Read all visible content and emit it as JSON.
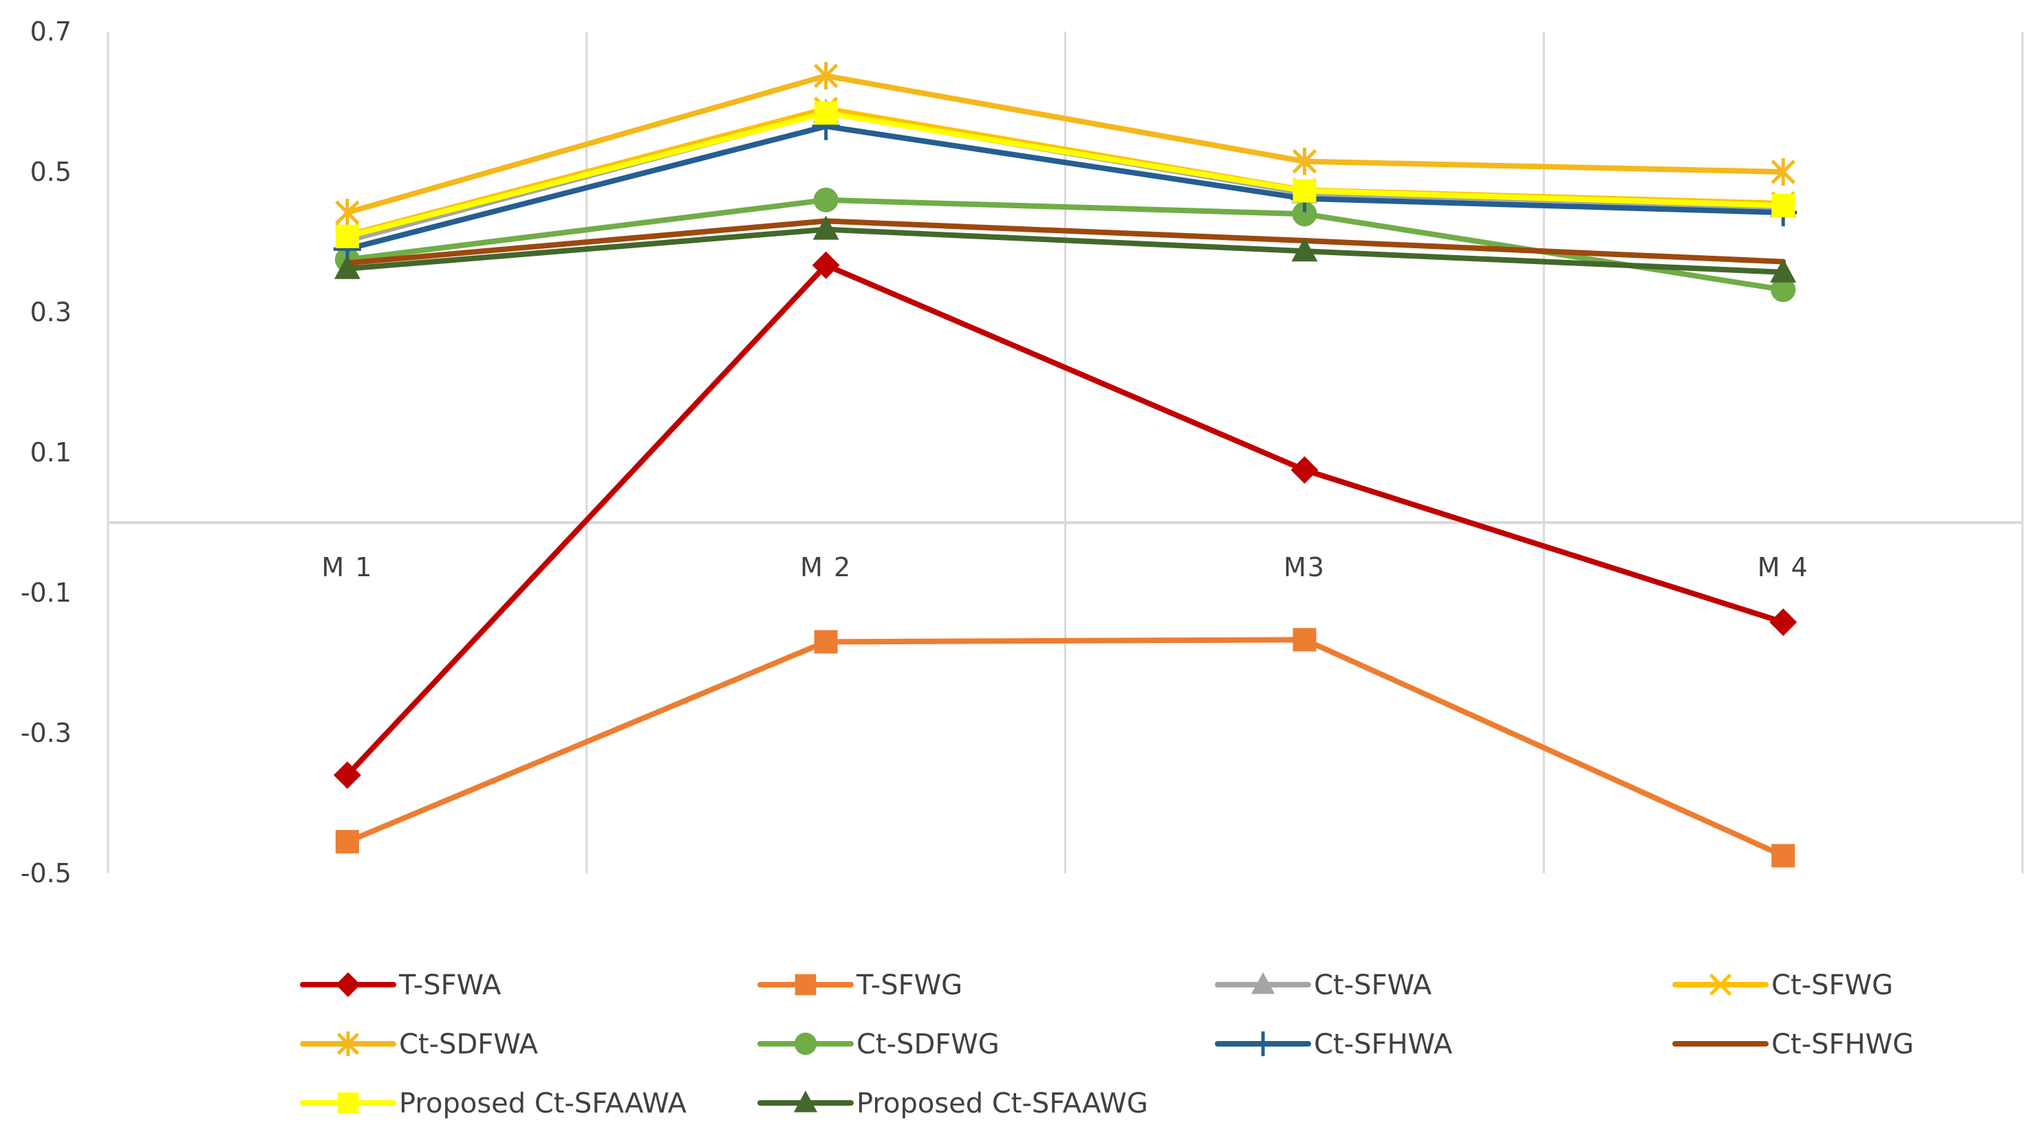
{
  "chart_data": {
    "type": "line",
    "categories": [
      "M 1",
      "M 2",
      "M3",
      "M 4"
    ],
    "y_ticks": [
      "0.7",
      "0.5",
      "0.3",
      "0.1",
      "-0.1",
      "-0.3",
      "-0.5"
    ],
    "ylim": [
      -0.5,
      0.7
    ],
    "grid": true,
    "legend_position": "bottom",
    "series": [
      {
        "name": "T-SFWA",
        "values": [
          -0.36,
          0.367,
          0.075,
          -0.142
        ],
        "color": "#C00000",
        "marker": "diamond"
      },
      {
        "name": "T-SFWG",
        "values": [
          -0.455,
          -0.17,
          -0.167,
          -0.475
        ],
        "color": "#ED7D31",
        "marker": "square"
      },
      {
        "name": "Ct-SFWA",
        "values": [
          0.402,
          0.585,
          0.47,
          0.45
        ],
        "color": "#A5A5A5",
        "marker": "triangle"
      },
      {
        "name": "Ct-SFWG",
        "values": [
          0.41,
          0.59,
          0.474,
          0.455
        ],
        "color": "#FFC000",
        "marker": "x"
      },
      {
        "name": "Ct-SDFWA",
        "values": [
          0.442,
          0.637,
          0.515,
          0.5
        ],
        "color": "#F4B81C",
        "marker": "asterisk"
      },
      {
        "name": "Ct-SDFWG",
        "values": [
          0.375,
          0.46,
          0.44,
          0.332
        ],
        "color": "#70AD47",
        "marker": "circle"
      },
      {
        "name": "Ct-SFHWA",
        "values": [
          0.39,
          0.565,
          0.462,
          0.442
        ],
        "color": "#255E91",
        "marker": "plus"
      },
      {
        "name": "Ct-SFHWG",
        "values": [
          0.37,
          0.43,
          0.402,
          0.372
        ],
        "color": "#9E480E",
        "marker": "none"
      },
      {
        "name": "Proposed Ct-SFAAWA",
        "values": [
          0.408,
          0.584,
          0.473,
          0.452
        ],
        "color": "#FFFF00",
        "marker": "square"
      },
      {
        "name": "Proposed Ct-SFAAWG",
        "values": [
          0.362,
          0.418,
          0.387,
          0.357
        ],
        "color": "#43682B",
        "marker": "triangle"
      }
    ]
  }
}
